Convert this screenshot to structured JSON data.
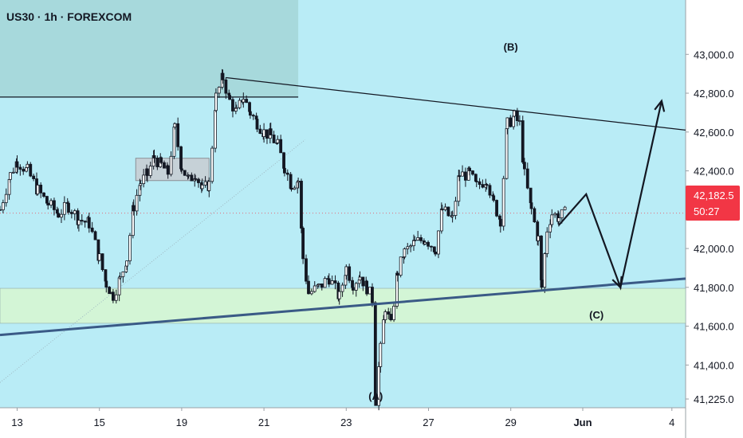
{
  "header": {
    "title": "US30 · 1h · FOREXCOM"
  },
  "price_tag": {
    "price": "42,182.5",
    "countdown": "50:27",
    "color": "#f23645"
  },
  "colors": {
    "background": "#b9ecf6",
    "axis_bg": "#ffffff",
    "supply_zone": "#a7d9dc",
    "demand_zone": "#d3f5d6",
    "trendline": "#3a5a86",
    "candle_up": "#131722",
    "candle_down": "#131722"
  },
  "chart_data": {
    "type": "candlestick",
    "symbol": "US30",
    "timeframe": "1h",
    "source": "FOREXCOM",
    "y_axis": {
      "ticks": [
        "43,000.0",
        "42,800.0",
        "42,600.0",
        "42,400.0",
        "42,200.0",
        "42,000.0",
        "41,800.0",
        "41,600.0",
        "41,400.0",
        "41,225.0"
      ],
      "tick_values": [
        43000,
        42800,
        42600,
        42400,
        42200,
        42000,
        41800,
        41600,
        41400,
        41225
      ],
      "range": [
        41180,
        43280
      ]
    },
    "x_axis": {
      "ticks": [
        "13",
        "15",
        "19",
        "21",
        "23",
        "27",
        "29",
        "Jun",
        "4"
      ],
      "range_days": [
        0,
        100
      ]
    },
    "current_price": 42182.5,
    "wave_labels": [
      {
        "label": "(A)",
        "price": 41220,
        "day": 54.8
      },
      {
        "label": "(B)",
        "price": 43020,
        "day": 74.5
      },
      {
        "label": "(C)",
        "price": 41640,
        "day": 87.0
      }
    ],
    "price_path": [
      [
        0,
        42200
      ],
      [
        1.5,
        42380
      ],
      [
        2.5,
        42450
      ],
      [
        4,
        42400
      ],
      [
        5.5,
        42300
      ],
      [
        7,
        42230
      ],
      [
        8.5,
        42180
      ],
      [
        10,
        42220
      ],
      [
        11.5,
        42150
      ],
      [
        13,
        42130
      ],
      [
        14.5,
        41950
      ],
      [
        15.5,
        41820
      ],
      [
        16.5,
        41760
      ],
      [
        17.5,
        41840
      ],
      [
        18.5,
        41950
      ],
      [
        19.5,
        42220
      ],
      [
        20.5,
        42340
      ],
      [
        21.5,
        42380
      ],
      [
        22.5,
        42470
      ],
      [
        23.5,
        42430
      ],
      [
        24.5,
        42390
      ],
      [
        25.5,
        42620
      ],
      [
        26.5,
        42420
      ],
      [
        27.5,
        42350
      ],
      [
        28.5,
        42390
      ],
      [
        29.5,
        42300
      ],
      [
        30.5,
        42330
      ],
      [
        31.5,
        42780
      ],
      [
        32.5,
        42880
      ],
      [
        33.5,
        42760
      ],
      [
        34.5,
        42700
      ],
      [
        35.5,
        42780
      ],
      [
        36.5,
        42700
      ],
      [
        37.5,
        42650
      ],
      [
        38.5,
        42600
      ],
      [
        39.5,
        42580
      ],
      [
        40.5,
        42530
      ],
      [
        41.5,
        42420
      ],
      [
        42.5,
        42330
      ],
      [
        43.5,
        42350
      ],
      [
        44.2,
        41950
      ],
      [
        45,
        41770
      ],
      [
        46.5,
        41800
      ],
      [
        48,
        41850
      ],
      [
        49.5,
        41750
      ],
      [
        50.5,
        41900
      ],
      [
        51.5,
        41820
      ],
      [
        52.5,
        41860
      ],
      [
        53.5,
        41800
      ],
      [
        54.3,
        41740
      ],
      [
        54.8,
        41220
      ],
      [
        55.5,
        41480
      ],
      [
        56.2,
        41700
      ],
      [
        57,
        41600
      ],
      [
        58,
        41880
      ],
      [
        59,
        41980
      ],
      [
        60.5,
        42030
      ],
      [
        62,
        42050
      ],
      [
        63.5,
        42000
      ],
      [
        64.5,
        42200
      ],
      [
        66,
        42150
      ],
      [
        67,
        42380
      ],
      [
        68.5,
        42380
      ],
      [
        69.5,
        42320
      ],
      [
        71,
        42360
      ],
      [
        72,
        42230
      ],
      [
        73,
        42150
      ],
      [
        74,
        42640
      ],
      [
        75,
        42680
      ],
      [
        75.8,
        42640
      ],
      [
        76.5,
        42380
      ],
      [
        77.5,
        42200
      ],
      [
        78.5,
        42050
      ],
      [
        79,
        41800
      ],
      [
        79.8,
        42100
      ],
      [
        80.5,
        42180
      ],
      [
        81.5,
        42160
      ],
      [
        82.5,
        42182
      ]
    ],
    "projection_path": [
      [
        81.5,
        42120
      ],
      [
        85.5,
        42280
      ],
      [
        90.5,
        41800
      ],
      [
        96.5,
        42760
      ]
    ],
    "upper_trendline": [
      [
        33,
        42880
      ],
      [
        100,
        42610
      ]
    ],
    "lower_trendline": [
      [
        0,
        41555
      ],
      [
        100,
        41845
      ]
    ],
    "supply_zone": {
      "day_start": 0,
      "day_end": 43.5,
      "price_top": 43280,
      "price_bottom": 42780
    },
    "demand_zone": {
      "day_start": 0,
      "day_end": 100,
      "price_top": 41795,
      "price_bottom": 41615
    },
    "gray_box": {
      "day_start": 19.8,
      "day_end": 30.5,
      "price_top": 42465,
      "price_bottom": 42350
    }
  }
}
